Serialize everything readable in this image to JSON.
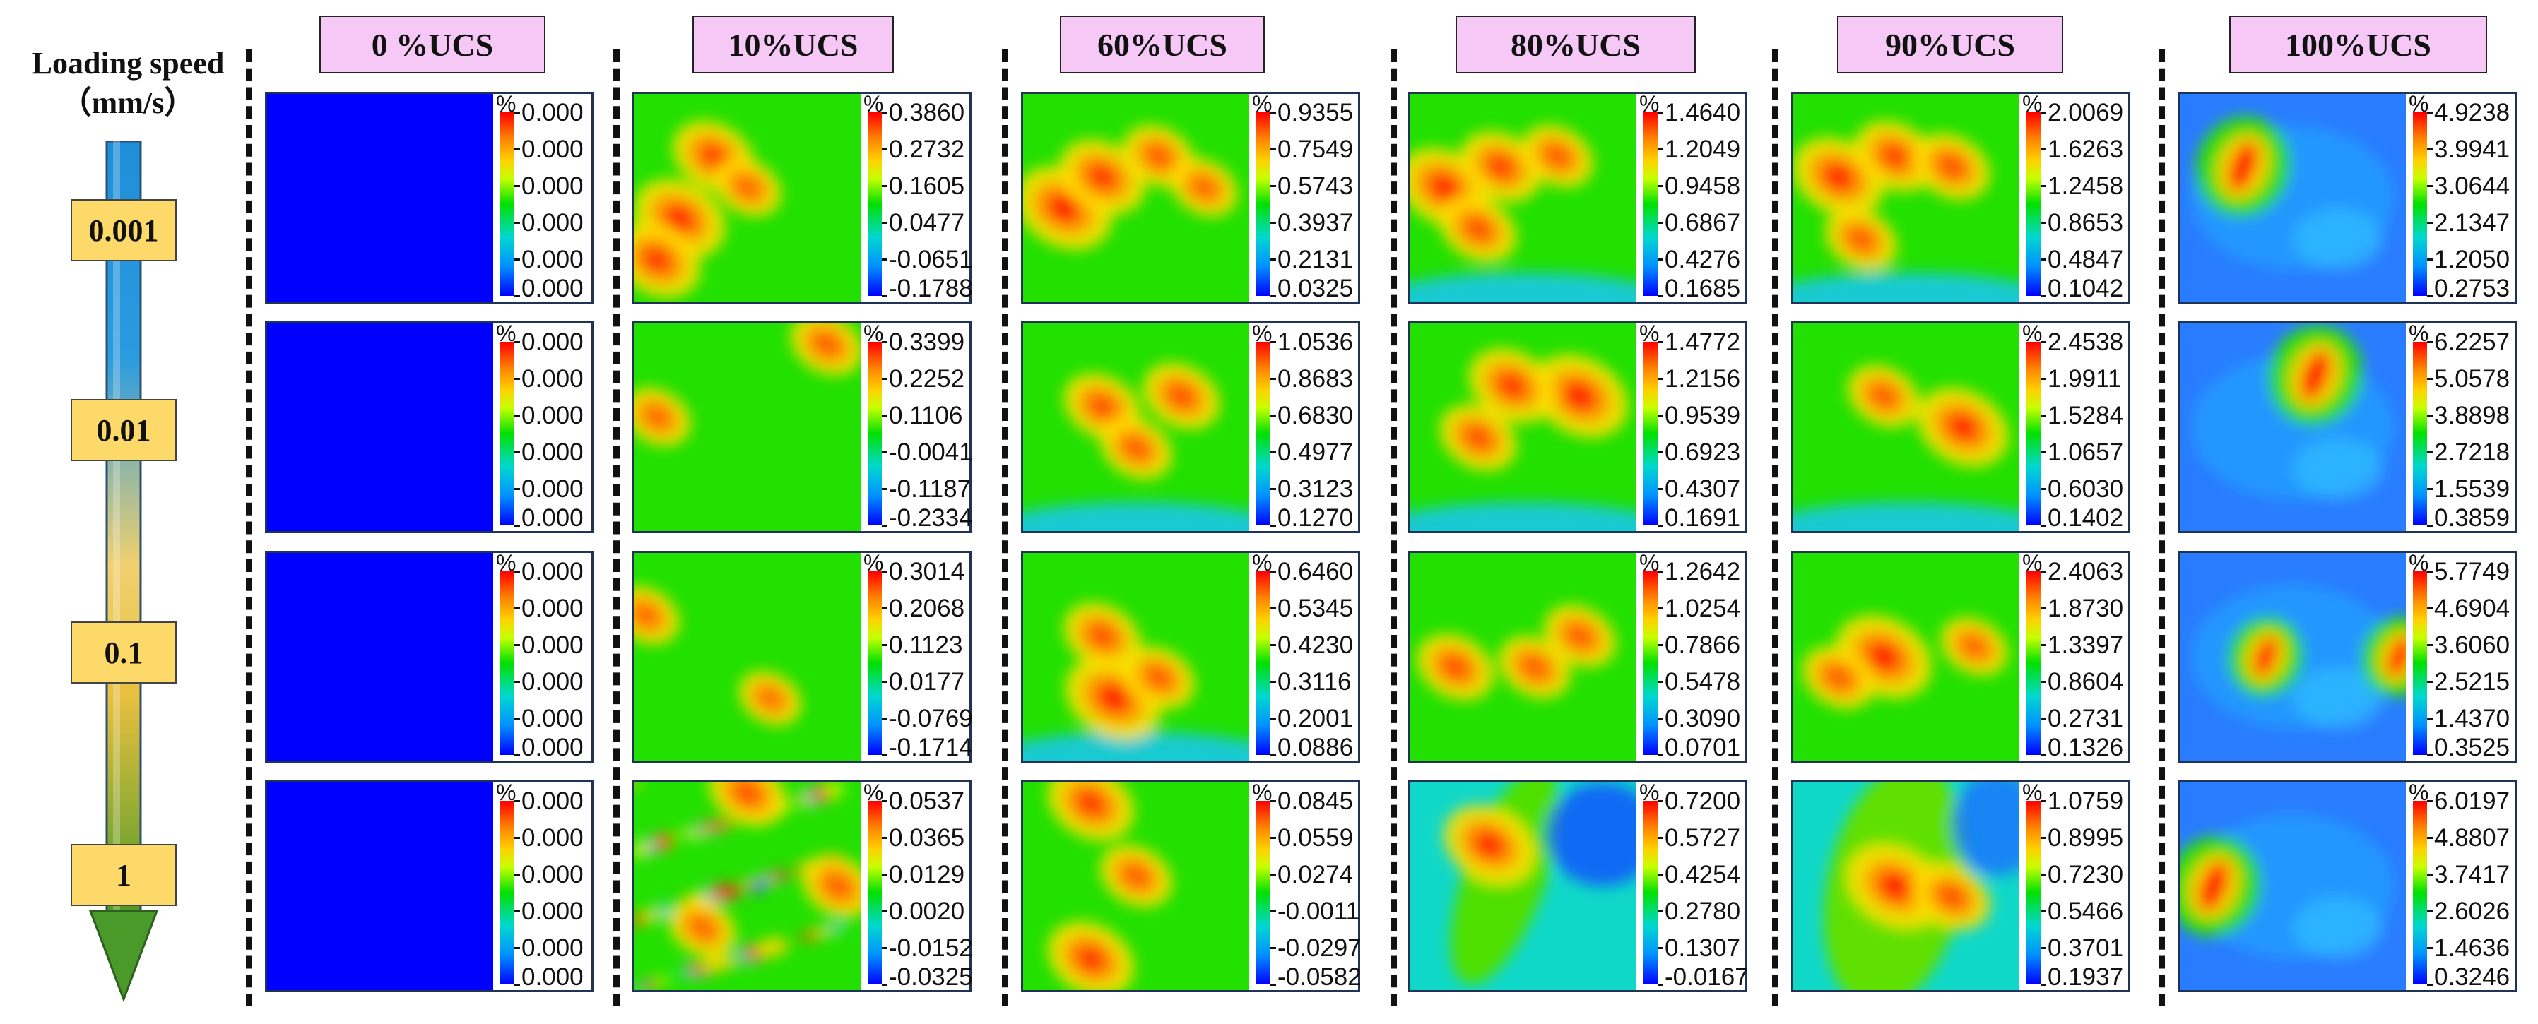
{
  "axis": {
    "title_line1": "Loading speed",
    "title_line2": "（mm/s）",
    "speeds": [
      "0.001",
      "0.01",
      "0.1",
      "1"
    ]
  },
  "columns": [
    "0 %UCS",
    "10%UCS",
    "60%UCS",
    "80%UCS",
    "90%UCS",
    "100%UCS"
  ],
  "colorbar_unit": "%",
  "colors": {
    "header_bg": "#f6c8f6",
    "speed_label_bg": "#fdd96a",
    "panel_border": "#1f3354",
    "uniform_blue": "#0000ff"
  },
  "panels": [
    [
      {
        "ticks": [
          "0.000",
          "0.000",
          "0.000",
          "0.000",
          "0.000",
          "0.000"
        ],
        "pattern": "uniform",
        "hot": []
      },
      {
        "ticks": [
          "0.3860",
          "0.2732",
          "0.1605",
          "0.0477",
          "-0.0651",
          "-0.1788"
        ],
        "pattern": "green",
        "hot": [
          [
            20,
            60,
            0.9
          ],
          [
            35,
            30,
            0.7
          ],
          [
            10,
            80,
            0.8
          ],
          [
            50,
            45,
            0.4
          ]
        ]
      },
      {
        "ticks": [
          "0.9355",
          "0.7549",
          "0.5743",
          "0.3937",
          "0.2131",
          "0.0325"
        ],
        "pattern": "green",
        "hot": [
          [
            18,
            55,
            1.0
          ],
          [
            35,
            40,
            0.8
          ],
          [
            60,
            30,
            0.5
          ],
          [
            80,
            45,
            0.4
          ]
        ]
      },
      {
        "ticks": [
          "1.4640",
          "1.2049",
          "0.9458",
          "0.6867",
          "0.4276",
          "0.1685"
        ],
        "pattern": "greenblue",
        "hot": [
          [
            15,
            45,
            0.9
          ],
          [
            40,
            35,
            0.7
          ],
          [
            65,
            30,
            0.5
          ],
          [
            30,
            65,
            0.6
          ]
        ]
      },
      {
        "ticks": [
          "2.0069",
          "1.6263",
          "1.2458",
          "0.8653",
          "0.4847",
          "0.1042"
        ],
        "pattern": "greenblue",
        "hot": [
          [
            20,
            40,
            0.9
          ],
          [
            45,
            30,
            0.7
          ],
          [
            70,
            35,
            0.6
          ],
          [
            30,
            70,
            0.5
          ]
        ]
      },
      {
        "ticks": [
          "4.9238",
          "3.9941",
          "3.0644",
          "2.1347",
          "1.2050",
          "0.2753"
        ],
        "pattern": "blue",
        "hot": [
          [
            28,
            35,
            1.0
          ]
        ]
      }
    ],
    [
      {
        "ticks": [
          "0.000",
          "0.000",
          "0.000",
          "0.000",
          "0.000",
          "0.000"
        ],
        "pattern": "uniform",
        "hot": []
      },
      {
        "ticks": [
          "0.3399",
          "0.2252",
          "0.1106",
          "-0.0041",
          "-0.1187",
          "-0.2334"
        ],
        "pattern": "green",
        "hot": [
          [
            85,
            10,
            0.5
          ],
          [
            10,
            45,
            0.4
          ]
        ]
      },
      {
        "ticks": [
          "1.0536",
          "0.8683",
          "0.6830",
          "0.4977",
          "0.3123",
          "0.1270"
        ],
        "pattern": "greenblue",
        "hot": [
          [
            35,
            40,
            0.6
          ],
          [
            70,
            35,
            0.6
          ],
          [
            50,
            60,
            0.5
          ]
        ]
      },
      {
        "ticks": [
          "1.4772",
          "1.2156",
          "0.9539",
          "0.6923",
          "0.4307",
          "0.1691"
        ],
        "pattern": "greenblue",
        "hot": [
          [
            75,
            35,
            1.0
          ],
          [
            45,
            30,
            0.8
          ],
          [
            30,
            55,
            0.6
          ]
        ]
      },
      {
        "ticks": [
          "2.4538",
          "1.9911",
          "1.5284",
          "1.0657",
          "0.6030",
          "0.1402"
        ],
        "pattern": "greenblue",
        "hot": [
          [
            75,
            50,
            0.9
          ],
          [
            40,
            35,
            0.5
          ]
        ]
      },
      {
        "ticks": [
          "6.2257",
          "5.0578",
          "3.8898",
          "2.7218",
          "1.5539",
          "0.3859"
        ],
        "pattern": "blue",
        "hot": [
          [
            60,
            25,
            1.0
          ]
        ]
      }
    ],
    [
      {
        "ticks": [
          "0.000",
          "0.000",
          "0.000",
          "0.000",
          "0.000",
          "0.000"
        ],
        "pattern": "uniform",
        "hot": []
      },
      {
        "ticks": [
          "0.3014",
          "0.2068",
          "0.1123",
          "0.0177",
          "-0.0769",
          "-0.1714"
        ],
        "pattern": "green",
        "hot": [
          [
            5,
            30,
            0.4
          ],
          [
            60,
            70,
            0.3
          ]
        ]
      },
      {
        "ticks": [
          "0.6460",
          "0.5345",
          "0.4230",
          "0.3116",
          "0.2001",
          "0.0886"
        ],
        "pattern": "greenblue",
        "hot": [
          [
            40,
            70,
            1.0
          ],
          [
            35,
            40,
            0.6
          ],
          [
            60,
            60,
            0.5
          ]
        ]
      },
      {
        "ticks": [
          "1.2642",
          "1.0254",
          "0.7866",
          "0.5478",
          "0.3090",
          "0.0701"
        ],
        "pattern": "green",
        "hot": [
          [
            20,
            55,
            0.6
          ],
          [
            55,
            55,
            0.5
          ],
          [
            75,
            40,
            0.5
          ]
        ]
      },
      {
        "ticks": [
          "2.4063",
          "1.8730",
          "1.3397",
          "0.8604",
          "0.2731",
          "0.1326"
        ],
        "pattern": "green",
        "hot": [
          [
            40,
            50,
            1.0
          ],
          [
            20,
            60,
            0.5
          ],
          [
            80,
            45,
            0.4
          ]
        ]
      },
      {
        "ticks": [
          "5.7749",
          "4.6904",
          "3.6060",
          "2.5215",
          "1.4370",
          "0.3525"
        ],
        "pattern": "blue",
        "hot": [
          [
            38,
            50,
            0.6
          ],
          [
            97,
            50,
            0.6
          ]
        ]
      }
    ],
    [
      {
        "ticks": [
          "0.000",
          "0.000",
          "0.000",
          "0.000",
          "0.000",
          "0.000"
        ],
        "pattern": "uniform",
        "hot": []
      },
      {
        "ticks": [
          "0.0537",
          "0.0365",
          "0.0129",
          "0.0020",
          "-0.0152",
          "-0.0325"
        ],
        "pattern": "speckle",
        "hot": [
          [
            50,
            5,
            0.6
          ],
          [
            90,
            50,
            0.5
          ],
          [
            30,
            70,
            0.4
          ]
        ]
      },
      {
        "ticks": [
          "0.0845",
          "0.0559",
          "0.0274",
          "-0.0011",
          "-0.0297",
          "-0.0582"
        ],
        "pattern": "green",
        "hot": [
          [
            30,
            10,
            0.8
          ],
          [
            30,
            85,
            0.8
          ],
          [
            50,
            45,
            0.5
          ]
        ]
      },
      {
        "ticks": [
          "0.7200",
          "0.5727",
          "0.4254",
          "0.2780",
          "0.1307",
          "-0.0167"
        ],
        "pattern": "diag",
        "hot": [
          [
            35,
            30,
            0.9
          ]
        ]
      },
      {
        "ticks": [
          "1.0759",
          "0.8995",
          "0.7230",
          "0.5466",
          "0.3701",
          "0.1937"
        ],
        "pattern": "diag2",
        "hot": [
          [
            45,
            50,
            1.0
          ],
          [
            70,
            55,
            0.6
          ]
        ]
      },
      {
        "ticks": [
          "6.0197",
          "4.8807",
          "3.7417",
          "2.6026",
          "1.4636",
          "0.3246"
        ],
        "pattern": "blue",
        "hot": [
          [
            15,
            50,
            1.0
          ]
        ]
      }
    ]
  ]
}
